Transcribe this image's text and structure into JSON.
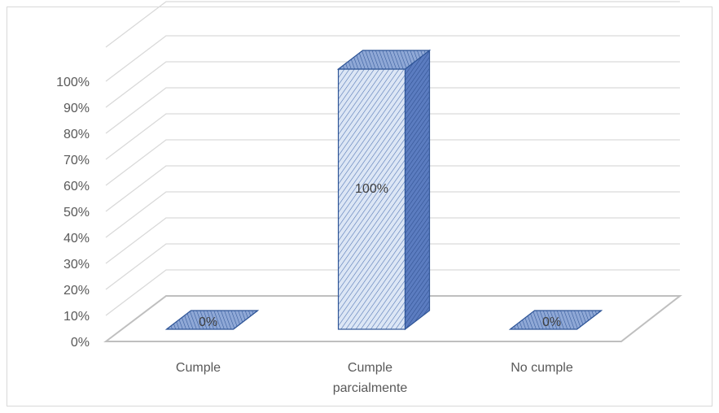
{
  "chart_data": {
    "type": "bar",
    "style": "3d-column",
    "categories": [
      "Cumple",
      "Cumple parcialmente",
      "No cumple"
    ],
    "category_lines": [
      [
        "Cumple"
      ],
      [
        "Cumple",
        "parcialmente"
      ],
      [
        "No cumple"
      ]
    ],
    "values": [
      0,
      100,
      0
    ],
    "data_labels": [
      "0%",
      "100%",
      "0%"
    ],
    "yticks": [
      "0%",
      "10%",
      "20%",
      "30%",
      "40%",
      "50%",
      "60%",
      "70%",
      "80%",
      "90%",
      "100%"
    ],
    "ylim": [
      0,
      100
    ],
    "grid": true,
    "legend": "none",
    "colors": {
      "bar_front": "#dce6f5",
      "bar_hatch": "#4a6fb0",
      "bar_side": "#5b7cc0",
      "bar_top": "#7f9bd0",
      "bar_edge": "#2f5597",
      "gridline": "#d9d9d9",
      "floor": "#bfbfbf"
    }
  }
}
